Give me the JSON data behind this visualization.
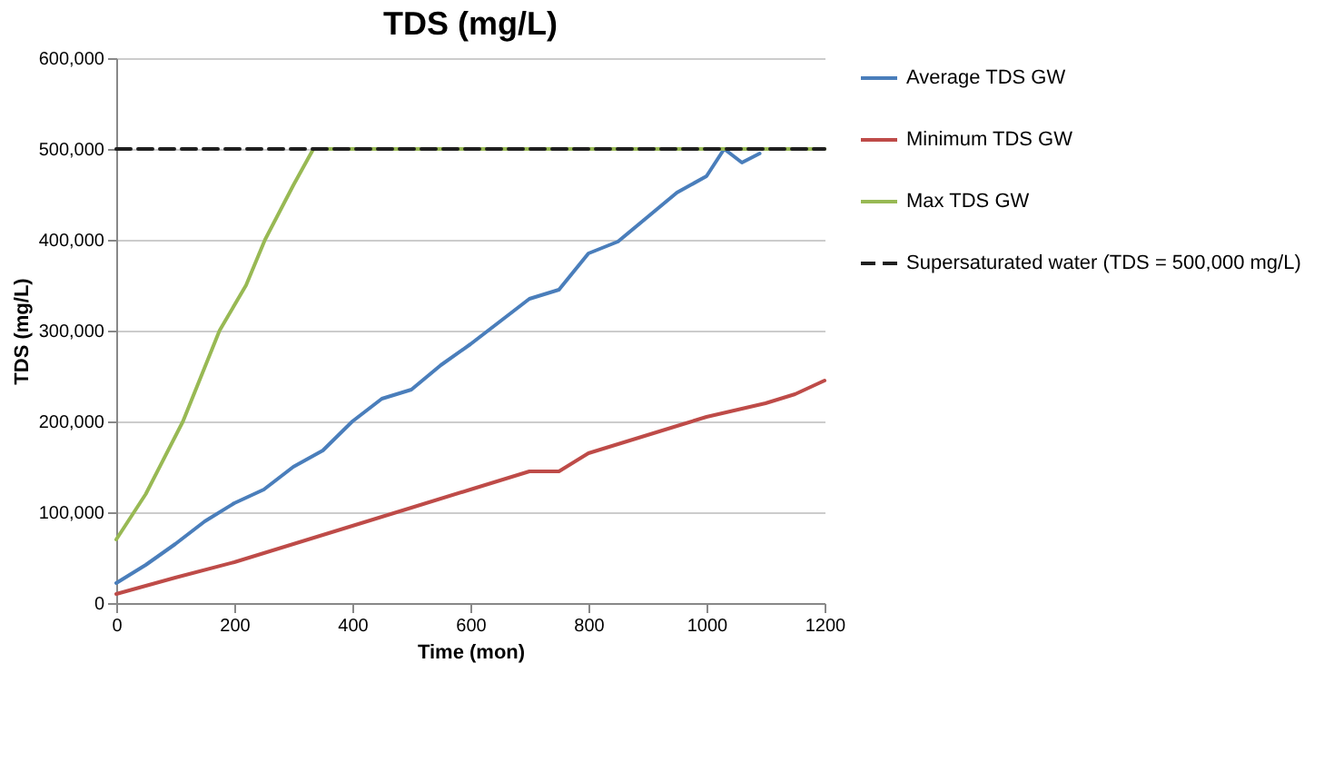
{
  "chart_data": {
    "type": "line",
    "title": "TDS (mg/L)",
    "xlabel": "Time (mon)",
    "ylabel": "TDS (mg/L)",
    "xlim": [
      0,
      1200
    ],
    "xticks": [
      0,
      200,
      400,
      600,
      800,
      1000,
      1200
    ],
    "ylim": [
      0,
      600000
    ],
    "yticks": [
      0,
      {
        "value": 100000,
        "label": "100,000"
      },
      {
        "value": 200000,
        "label": "200,000"
      },
      {
        "value": 300000,
        "label": "300,000"
      },
      {
        "value": 400000,
        "label": "400,000"
      },
      {
        "value": 500000,
        "label": "500,000"
      },
      {
        "value": 600000,
        "label": "600,000"
      }
    ],
    "grid": "y",
    "legend": "right",
    "series": [
      {
        "name": "Average TDS GW",
        "color": "#4a7ebb",
        "x": [
          0,
          50,
          100,
          150,
          200,
          250,
          300,
          350,
          400,
          450,
          500,
          550,
          600,
          650,
          700,
          750,
          800,
          850,
          900,
          950,
          1000,
          1030,
          1060,
          1090
        ],
        "values": [
          22000,
          42000,
          65000,
          90000,
          110000,
          125000,
          150000,
          168000,
          200000,
          225000,
          235000,
          262000,
          285000,
          310000,
          335000,
          345000,
          385000,
          398000,
          425000,
          452000,
          470000,
          500000,
          485000,
          495000
        ]
      },
      {
        "name": "Minimum TDS GW",
        "color": "#be4b48",
        "x": [
          0,
          100,
          200,
          300,
          400,
          500,
          600,
          700,
          750,
          800,
          900,
          950,
          1000,
          1100,
          1150,
          1200
        ],
        "values": [
          10000,
          28000,
          45000,
          65000,
          85000,
          105000,
          125000,
          145000,
          145000,
          165000,
          185000,
          195000,
          205000,
          220000,
          230000,
          245000
        ]
      },
      {
        "name": "Max TDS GW",
        "color": "#98b954",
        "x": [
          0,
          50,
          113,
          175,
          220,
          252,
          300,
          334,
          1200
        ],
        "values": [
          70000,
          120000,
          200000,
          300000,
          350000,
          400000,
          460000,
          500000,
          500000
        ]
      },
      {
        "name": "Supersaturated water (TDS = 500,000 mg/L)",
        "color": "#1f1f1f",
        "line_style": "dashed",
        "x": [
          0,
          1200
        ],
        "values": [
          500000,
          500000
        ]
      }
    ]
  }
}
